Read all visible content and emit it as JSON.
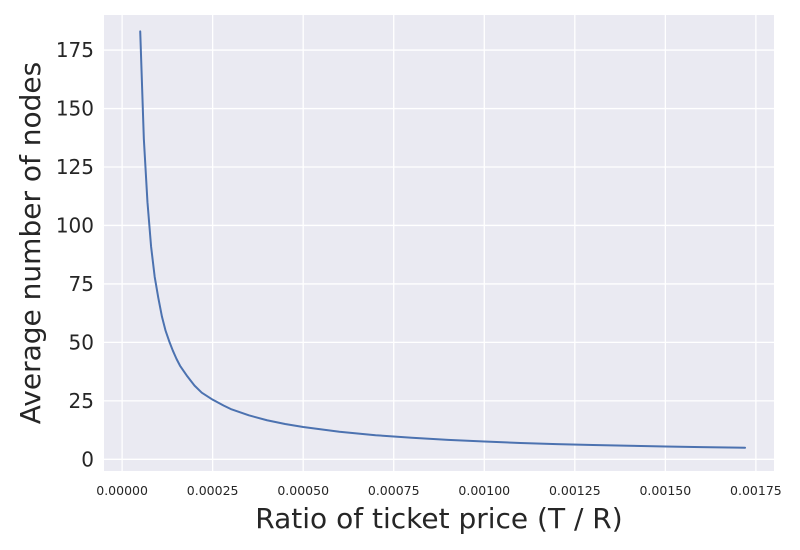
{
  "chart_data": {
    "type": "line",
    "title": "",
    "xlabel": "Ratio of ticket price (T / R)",
    "ylabel": "Average number of nodes",
    "xlim": [
      -5e-05,
      0.0018
    ],
    "ylim": [
      -5,
      190
    ],
    "xticks": [
      0.0,
      0.00025,
      0.0005,
      0.00075,
      0.001,
      0.00125,
      0.0015,
      0.00175
    ],
    "xtick_labels": [
      "0.00000",
      "0.00025",
      "0.00050",
      "0.00075",
      "0.00100",
      "0.00125",
      "0.00150",
      "0.00175"
    ],
    "yticks": [
      0,
      25,
      50,
      75,
      100,
      125,
      150,
      175
    ],
    "ytick_labels": [
      "0",
      "25",
      "50",
      "75",
      "100",
      "125",
      "150",
      "175"
    ],
    "grid": true,
    "background_color": "#eaeaf2",
    "grid_color": "#ffffff",
    "series": [
      {
        "name": "",
        "color": "#4c72b0",
        "x": [
          5e-05,
          6e-05,
          7e-05,
          8e-05,
          9e-05,
          0.0001,
          0.00011,
          0.00012,
          0.00013,
          0.00014,
          0.00015,
          0.00016,
          0.00018,
          0.0002,
          0.00022,
          0.00025,
          0.00028,
          0.0003,
          0.00035,
          0.0004,
          0.00045,
          0.0005,
          0.0006,
          0.0007,
          0.0008,
          0.0009,
          0.001,
          0.0011,
          0.0012,
          0.0013,
          0.0014,
          0.0015,
          0.0016,
          0.0017,
          0.00172
        ],
        "y": [
          183,
          137,
          110,
          91,
          78,
          69,
          61,
          55,
          50.5,
          46.5,
          43,
          40,
          35.5,
          31.5,
          28.5,
          25.5,
          23,
          21.5,
          18.8,
          16.7,
          15.1,
          13.8,
          11.8,
          10.3,
          9.2,
          8.3,
          7.6,
          7.0,
          6.5,
          6.1,
          5.8,
          5.5,
          5.2,
          5.0,
          4.95
        ]
      }
    ]
  }
}
